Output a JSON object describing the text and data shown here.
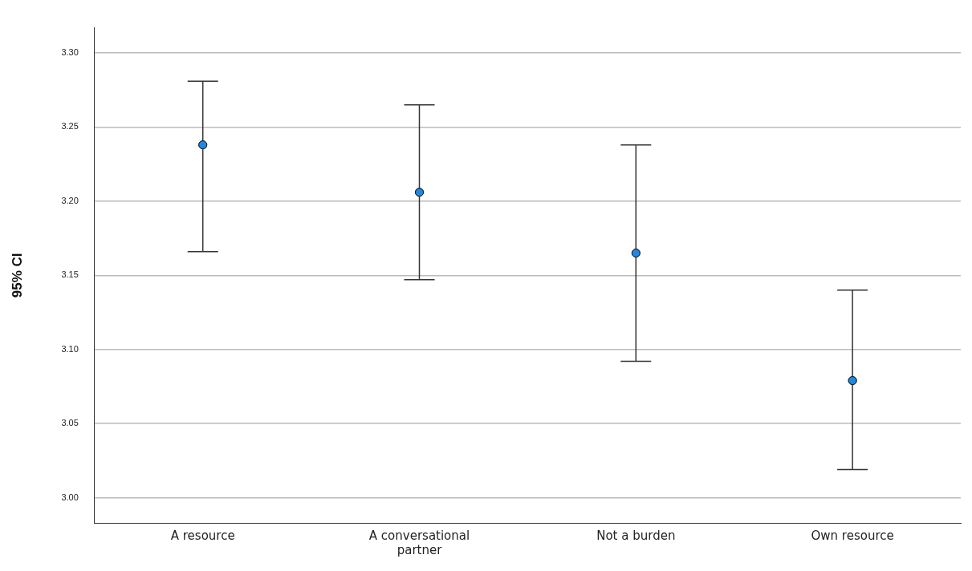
{
  "chart_data": {
    "type": "scatter",
    "ylabel": "95% CI",
    "categories": [
      "A resource",
      "A conversational partner",
      "Not a burden",
      "Own resource"
    ],
    "series": [
      {
        "color": "#1e88e5",
        "values": [
          3.238,
          3.206,
          3.165,
          3.079
        ],
        "errors": [
          [
            3.166,
            3.281
          ],
          [
            3.147,
            3.265
          ],
          [
            3.092,
            3.238
          ],
          [
            3.019,
            3.14
          ]
        ]
      }
    ],
    "ylim": [
      2.983,
      3.317
    ],
    "yticks": [
      {
        "value": 3,
        "label": "3.00"
      },
      {
        "value": 3.05,
        "label": "3.05"
      },
      {
        "value": 3.1,
        "label": "3.10"
      },
      {
        "value": 3.15,
        "label": "3.15"
      },
      {
        "value": 3.2,
        "label": "3.20"
      },
      {
        "value": 3.25,
        "label": "3.25"
      },
      {
        "value": 3.3,
        "label": "3.30"
      }
    ],
    "grid": "y",
    "marker": "circle",
    "legend": false
  }
}
